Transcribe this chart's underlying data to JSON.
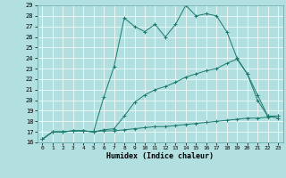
{
  "xlabel": "Humidex (Indice chaleur)",
  "bg_color": "#b2e0e0",
  "line_color": "#1a7a6e",
  "grid_color": "#ffffff",
  "xlim": [
    -0.5,
    23.5
  ],
  "ylim": [
    16,
    29
  ],
  "xticks": [
    0,
    1,
    2,
    3,
    4,
    5,
    6,
    7,
    8,
    9,
    10,
    11,
    12,
    13,
    14,
    15,
    16,
    17,
    18,
    19,
    20,
    21,
    22,
    23
  ],
  "yticks": [
    16,
    17,
    18,
    19,
    20,
    21,
    22,
    23,
    24,
    25,
    26,
    27,
    28,
    29
  ],
  "line1_x": [
    0,
    1,
    2,
    3,
    4,
    5,
    6,
    7,
    8,
    9,
    10,
    11,
    12,
    13,
    14,
    15,
    16,
    17,
    18,
    19,
    20,
    21,
    22,
    23
  ],
  "line1_y": [
    16.3,
    17.0,
    17.0,
    17.1,
    17.1,
    17.0,
    17.1,
    17.1,
    17.2,
    17.3,
    17.4,
    17.5,
    17.5,
    17.6,
    17.7,
    17.8,
    17.9,
    18.0,
    18.1,
    18.2,
    18.3,
    18.3,
    18.4,
    18.5
  ],
  "line2_x": [
    0,
    1,
    2,
    3,
    4,
    5,
    6,
    7,
    8,
    9,
    10,
    11,
    12,
    13,
    14,
    15,
    16,
    17,
    18,
    19,
    20,
    21,
    22,
    23
  ],
  "line2_y": [
    16.3,
    17.0,
    17.0,
    17.1,
    17.1,
    17.0,
    17.2,
    17.3,
    18.5,
    19.8,
    20.5,
    21.0,
    21.3,
    21.7,
    22.2,
    22.5,
    22.8,
    23.0,
    23.5,
    23.9,
    22.5,
    20.5,
    18.5,
    18.5
  ],
  "line3_x": [
    0,
    1,
    2,
    3,
    4,
    5,
    6,
    7,
    8,
    9,
    10,
    11,
    12,
    13,
    14,
    15,
    16,
    17,
    18,
    19,
    20,
    21,
    22,
    23
  ],
  "line3_y": [
    16.3,
    17.0,
    17.0,
    17.1,
    17.1,
    17.0,
    20.3,
    23.2,
    27.8,
    27.0,
    26.5,
    27.2,
    26.0,
    27.2,
    29.0,
    28.0,
    28.2,
    28.0,
    26.5,
    24.0,
    22.5,
    20.0,
    18.5,
    18.3
  ]
}
